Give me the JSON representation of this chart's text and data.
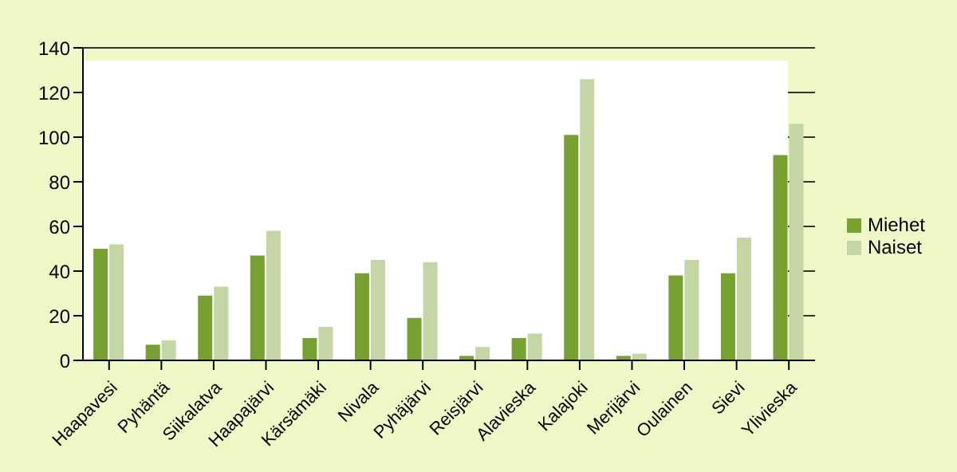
{
  "chart_data": {
    "type": "bar",
    "categories": [
      "Haapavesi",
      "Pyhäntä",
      "Siikalatva",
      "Haapajärvi",
      "Kärsämäki",
      "Nivala",
      "Pyhäjärvi",
      "Reisjärvi",
      "Alavieska",
      "Kalajoki",
      "Merijärvi",
      "Oulainen",
      "Sievi",
      "Ylivieska"
    ],
    "series": [
      {
        "name": "Miehet",
        "color": "#76a030",
        "values": [
          50,
          7,
          29,
          47,
          10,
          39,
          19,
          2,
          10,
          101,
          2,
          38,
          39,
          92
        ]
      },
      {
        "name": "Naiset",
        "color": "#c4d6a6",
        "values": [
          52,
          9,
          33,
          58,
          15,
          45,
          44,
          6,
          12,
          126,
          3,
          45,
          55,
          106
        ]
      }
    ],
    "ylim": [
      0,
      140
    ],
    "yticks": [
      0,
      20,
      40,
      60,
      80,
      100,
      120,
      140
    ],
    "grid": "y",
    "legend": "right"
  }
}
